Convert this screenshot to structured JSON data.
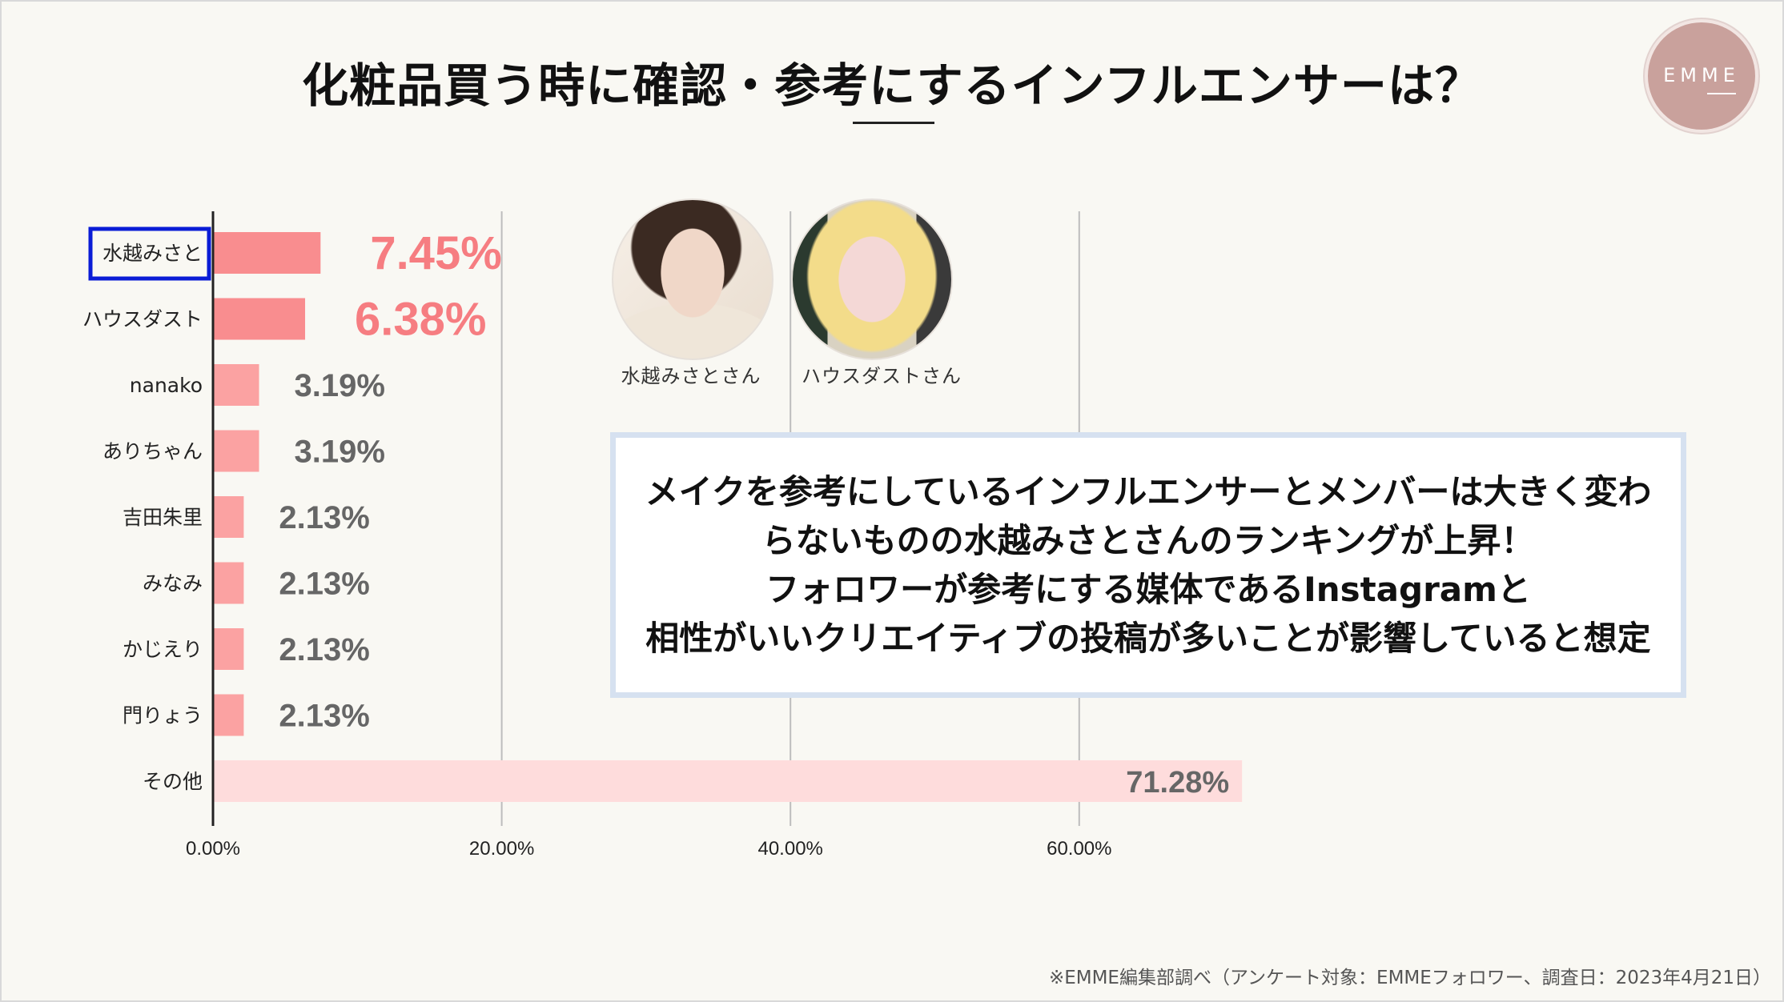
{
  "title": "化粧品買う時に確認・参考にするインフルエンサーは？",
  "logo": {
    "text": "EMME"
  },
  "chart_data": {
    "type": "bar",
    "orientation": "horizontal",
    "categories": [
      "水越みさと",
      "ハウスダスト",
      "nanako",
      "ありちゃん",
      "吉田朱里",
      "みなみ",
      "かじえり",
      "門りょう",
      "その他"
    ],
    "values": [
      7.45,
      6.38,
      3.19,
      3.19,
      2.13,
      2.13,
      2.13,
      2.13,
      71.28
    ],
    "value_labels": [
      "7.45%",
      "6.38%",
      "3.19%",
      "3.19%",
      "2.13%",
      "2.13%",
      "2.13%",
      "2.13%",
      "71.28%"
    ],
    "xlim": [
      0,
      72
    ],
    "x_ticks": [
      0,
      20,
      40,
      60
    ],
    "x_tick_labels": [
      "0.00%",
      "20.00%",
      "40.00%",
      "60.00%"
    ],
    "highlighted_category": "水越みさと",
    "grid": "vertical",
    "colors": {
      "top": "#f98d8f",
      "mid": "#fba2a2",
      "other": "#fedcdc",
      "label_top": "#f67d81",
      "label_mid": "#666666",
      "highlight_box": "#0a1cd6",
      "grid": "#bdbdbd"
    }
  },
  "avatars": [
    {
      "label": "水越みさとさん"
    },
    {
      "label": "ハウスダストさん"
    }
  ],
  "callout": {
    "lines": [
      "メイクを参考にしているインフルエンサーとメンバーは大きく変わ",
      "らないものの水越みさとさんのランキングが上昇！",
      "フォロワーが参考にする媒体であるInstagramと",
      "相性がいいクリエイティブの投稿が多いことが影響していると想定"
    ]
  },
  "footnote": "※EMME編集部調べ（アンケート対象：EMMEフォロワー、調査日：2023年4月21日）"
}
